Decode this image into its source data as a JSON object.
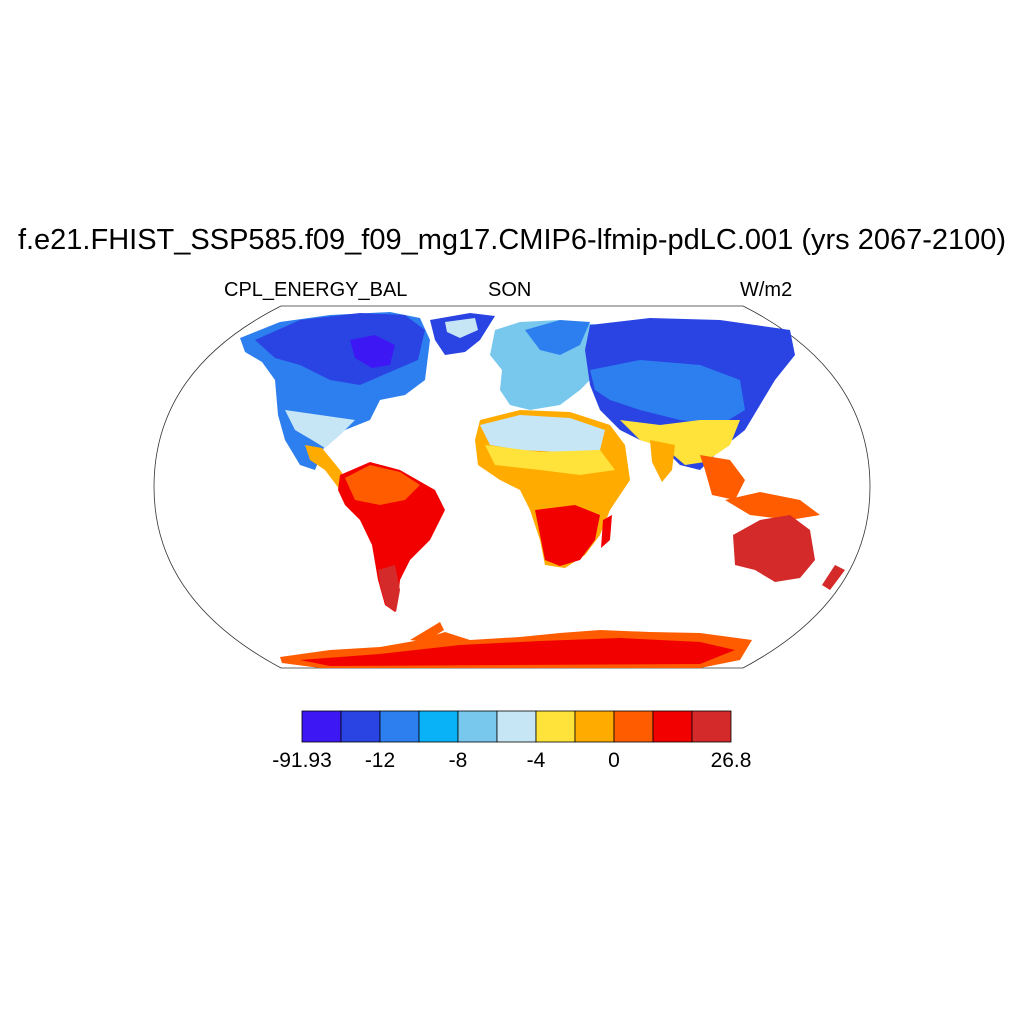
{
  "title": "f.e21.FHIST_SSP585.f09_f09_mg17.CMIP6-lfmip-pdLC.001 (yrs 2067-2100)",
  "left_label": "CPL_ENERGY_BAL",
  "center_label": "SON",
  "right_label": "W/m2",
  "map": {
    "projection": "robinson",
    "ocean_color": "#ffffff",
    "outline_color": "#000000"
  },
  "colorbar": {
    "colors": [
      "#3d18f5",
      "#2a44e3",
      "#2d7ff0",
      "#09b1f6",
      "#78c8ee",
      "#c6e5f5",
      "#ffe23a",
      "#ffab00",
      "#ff5c00",
      "#f20000",
      "#d42a2a"
    ],
    "tick_labels": [
      "-91.93",
      "-12",
      "-8",
      "-4",
      "0",
      "26.8"
    ],
    "tick_boundaries": [
      0,
      2,
      4,
      6,
      8,
      11
    ]
  }
}
